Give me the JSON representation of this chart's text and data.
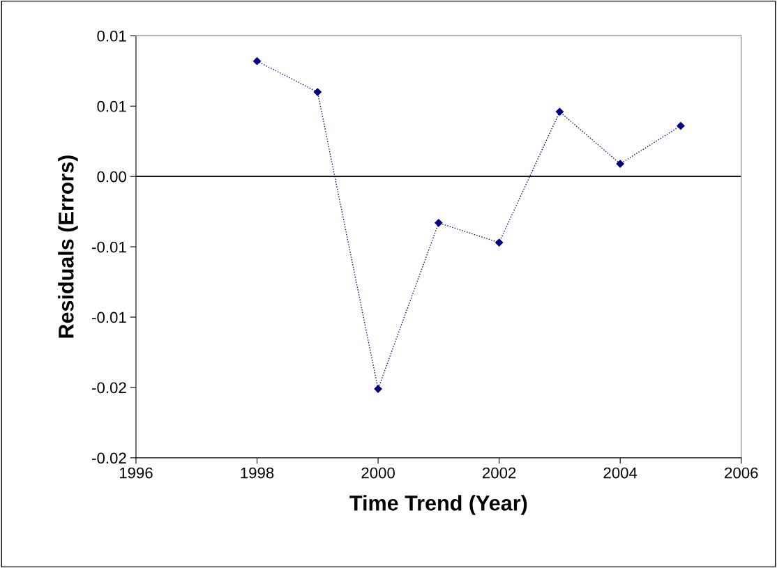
{
  "chart_data": {
    "type": "line",
    "xlabel": "Time Trend (Year)",
    "ylabel": "Residuals (Errors)",
    "x": [
      1998,
      1999,
      2000,
      2001,
      2002,
      2003,
      2004,
      2005
    ],
    "series": [
      {
        "color": "#000080",
        "values": [
          0.0082,
          0.006,
          -0.0151,
          -0.0033,
          -0.0047,
          0.0046,
          0.0009,
          0.0036
        ]
      }
    ],
    "xlim": [
      1996,
      2006
    ],
    "xticks": [
      1996,
      1998,
      2000,
      2002,
      2004,
      2006
    ],
    "ylim": [
      -0.02,
      0.01
    ],
    "yticks": [
      {
        "value": -0.02,
        "label": "-0.02"
      },
      {
        "value": -0.015,
        "label": "-0.02"
      },
      {
        "value": -0.01,
        "label": "-0.01"
      },
      {
        "value": -0.005,
        "label": "-0.01"
      },
      {
        "value": 0,
        "label": "0.00"
      },
      {
        "value": 0.005,
        "label": "0.01"
      },
      {
        "value": 0.01,
        "label": "0.01"
      }
    ],
    "ref_lines": [
      {
        "axis": "y",
        "value": 0,
        "color": "#000000",
        "line_style": "solid"
      }
    ],
    "marker": "diamond",
    "line_style": "dotted",
    "grid": false,
    "legend": false
  }
}
